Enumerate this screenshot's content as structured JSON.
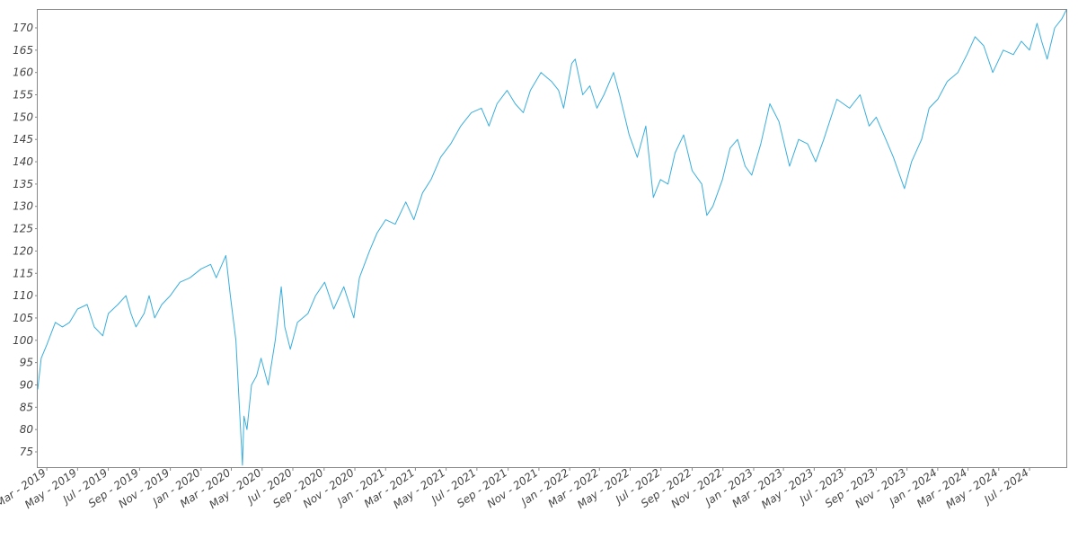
{
  "chart_data": {
    "type": "line",
    "title": "",
    "xlabel": "",
    "ylabel": "",
    "ylim": [
      72,
      174
    ],
    "x_range": [
      "2019-02-11",
      "2024-09-12"
    ],
    "grid": false,
    "legend": "none",
    "line_color": "#3aaedc",
    "y_ticks": [
      75,
      80,
      85,
      90,
      95,
      100,
      105,
      110,
      115,
      120,
      125,
      130,
      135,
      140,
      145,
      150,
      155,
      160,
      165,
      170
    ],
    "x_ticks": [
      {
        "label": "Mar - 2019",
        "date": "2019-03-01"
      },
      {
        "label": "May - 2019",
        "date": "2019-05-01"
      },
      {
        "label": "Jul - 2019",
        "date": "2019-07-01"
      },
      {
        "label": "Sep - 2019",
        "date": "2019-09-01"
      },
      {
        "label": "Nov - 2019",
        "date": "2019-11-01"
      },
      {
        "label": "Jan - 2020",
        "date": "2020-01-01"
      },
      {
        "label": "Mar - 2020",
        "date": "2020-03-01"
      },
      {
        "label": "May - 2020",
        "date": "2020-05-01"
      },
      {
        "label": "Jul - 2020",
        "date": "2020-07-01"
      },
      {
        "label": "Sep - 2020",
        "date": "2020-09-01"
      },
      {
        "label": "Nov - 2020",
        "date": "2020-11-01"
      },
      {
        "label": "Jan - 2021",
        "date": "2021-01-01"
      },
      {
        "label": "Mar - 2021",
        "date": "2021-03-01"
      },
      {
        "label": "May - 2021",
        "date": "2021-05-01"
      },
      {
        "label": "Jul - 2021",
        "date": "2021-07-01"
      },
      {
        "label": "Sep - 2021",
        "date": "2021-09-01"
      },
      {
        "label": "Nov - 2021",
        "date": "2021-11-01"
      },
      {
        "label": "Jan - 2022",
        "date": "2022-01-01"
      },
      {
        "label": "Mar - 2022",
        "date": "2022-03-01"
      },
      {
        "label": "May - 2022",
        "date": "2022-05-01"
      },
      {
        "label": "Jul - 2022",
        "date": "2022-07-01"
      },
      {
        "label": "Sep - 2022",
        "date": "2022-09-01"
      },
      {
        "label": "Nov - 2022",
        "date": "2022-11-01"
      },
      {
        "label": "Jan - 2023",
        "date": "2023-01-01"
      },
      {
        "label": "Mar - 2023",
        "date": "2023-03-01"
      },
      {
        "label": "May - 2023",
        "date": "2023-05-01"
      },
      {
        "label": "Jul - 2023",
        "date": "2023-07-01"
      },
      {
        "label": "Sep - 2023",
        "date": "2023-09-01"
      },
      {
        "label": "Nov - 2023",
        "date": "2023-11-01"
      },
      {
        "label": "Jan - 2024",
        "date": "2024-01-01"
      },
      {
        "label": "Mar - 2024",
        "date": "2024-03-01"
      },
      {
        "label": "May - 2024",
        "date": "2024-05-01"
      },
      {
        "label": "Jul - 2024",
        "date": "2024-07-01"
      }
    ],
    "series": [
      {
        "points": [
          [
            "2019-02-11",
            89
          ],
          [
            "2019-02-18",
            96
          ],
          [
            "2019-03-01",
            99
          ],
          [
            "2019-03-18",
            104
          ],
          [
            "2019-04-01",
            103
          ],
          [
            "2019-04-15",
            104
          ],
          [
            "2019-05-01",
            107
          ],
          [
            "2019-05-20",
            108
          ],
          [
            "2019-06-03",
            103
          ],
          [
            "2019-06-20",
            101
          ],
          [
            "2019-07-01",
            106
          ],
          [
            "2019-07-20",
            108
          ],
          [
            "2019-08-05",
            110
          ],
          [
            "2019-08-15",
            106
          ],
          [
            "2019-08-25",
            103
          ],
          [
            "2019-09-10",
            106
          ],
          [
            "2019-09-20",
            110
          ],
          [
            "2019-10-01",
            105
          ],
          [
            "2019-10-15",
            108
          ],
          [
            "2019-11-01",
            110
          ],
          [
            "2019-11-20",
            113
          ],
          [
            "2019-12-10",
            114
          ],
          [
            "2020-01-01",
            116
          ],
          [
            "2020-01-20",
            117
          ],
          [
            "2020-01-31",
            114
          ],
          [
            "2020-02-19",
            119
          ],
          [
            "2020-02-28",
            110
          ],
          [
            "2020-03-10",
            100
          ],
          [
            "2020-03-23",
            72
          ],
          [
            "2020-03-26",
            83
          ],
          [
            "2020-04-01",
            80
          ],
          [
            "2020-04-10",
            90
          ],
          [
            "2020-04-20",
            92
          ],
          [
            "2020-04-29",
            96
          ],
          [
            "2020-05-13",
            90
          ],
          [
            "2020-05-27",
            100
          ],
          [
            "2020-06-08",
            112
          ],
          [
            "2020-06-15",
            103
          ],
          [
            "2020-06-26",
            98
          ],
          [
            "2020-07-10",
            104
          ],
          [
            "2020-07-31",
            106
          ],
          [
            "2020-08-15",
            110
          ],
          [
            "2020-09-02",
            113
          ],
          [
            "2020-09-20",
            107
          ],
          [
            "2020-10-10",
            112
          ],
          [
            "2020-10-30",
            105
          ],
          [
            "2020-11-10",
            114
          ],
          [
            "2020-11-30",
            120
          ],
          [
            "2020-12-15",
            124
          ],
          [
            "2021-01-01",
            127
          ],
          [
            "2021-01-20",
            126
          ],
          [
            "2021-02-10",
            131
          ],
          [
            "2021-02-26",
            127
          ],
          [
            "2021-03-15",
            133
          ],
          [
            "2021-04-01",
            136
          ],
          [
            "2021-04-20",
            141
          ],
          [
            "2021-05-10",
            144
          ],
          [
            "2021-05-30",
            148
          ],
          [
            "2021-06-20",
            151
          ],
          [
            "2021-07-10",
            152
          ],
          [
            "2021-07-25",
            148
          ],
          [
            "2021-08-10",
            153
          ],
          [
            "2021-08-30",
            156
          ],
          [
            "2021-09-15",
            153
          ],
          [
            "2021-10-01",
            151
          ],
          [
            "2021-10-15",
            156
          ],
          [
            "2021-11-05",
            160
          ],
          [
            "2021-11-26",
            158
          ],
          [
            "2021-12-10",
            156
          ],
          [
            "2021-12-20",
            152
          ],
          [
            "2022-01-05",
            162
          ],
          [
            "2022-01-12",
            163
          ],
          [
            "2022-01-27",
            155
          ],
          [
            "2022-02-10",
            157
          ],
          [
            "2022-02-24",
            152
          ],
          [
            "2022-03-10",
            155
          ],
          [
            "2022-03-29",
            160
          ],
          [
            "2022-04-10",
            155
          ],
          [
            "2022-04-29",
            146
          ],
          [
            "2022-05-15",
            141
          ],
          [
            "2022-06-01",
            148
          ],
          [
            "2022-06-16",
            132
          ],
          [
            "2022-06-30",
            136
          ],
          [
            "2022-07-15",
            135
          ],
          [
            "2022-07-29",
            142
          ],
          [
            "2022-08-15",
            146
          ],
          [
            "2022-09-01",
            138
          ],
          [
            "2022-09-20",
            135
          ],
          [
            "2022-09-30",
            128
          ],
          [
            "2022-10-12",
            130
          ],
          [
            "2022-10-31",
            136
          ],
          [
            "2022-11-15",
            143
          ],
          [
            "2022-11-30",
            145
          ],
          [
            "2022-12-15",
            139
          ],
          [
            "2022-12-28",
            137
          ],
          [
            "2023-01-15",
            144
          ],
          [
            "2023-02-02",
            153
          ],
          [
            "2023-02-20",
            149
          ],
          [
            "2023-03-13",
            139
          ],
          [
            "2023-03-31",
            145
          ],
          [
            "2023-04-18",
            144
          ],
          [
            "2023-05-04",
            140
          ],
          [
            "2023-05-20",
            145
          ],
          [
            "2023-06-15",
            154
          ],
          [
            "2023-07-10",
            152
          ],
          [
            "2023-07-31",
            155
          ],
          [
            "2023-08-18",
            148
          ],
          [
            "2023-09-01",
            150
          ],
          [
            "2023-09-20",
            145
          ],
          [
            "2023-10-05",
            141
          ],
          [
            "2023-10-27",
            134
          ],
          [
            "2023-11-10",
            140
          ],
          [
            "2023-11-30",
            145
          ],
          [
            "2023-12-15",
            152
          ],
          [
            "2024-01-01",
            154
          ],
          [
            "2024-01-20",
            158
          ],
          [
            "2024-02-10",
            160
          ],
          [
            "2024-02-28",
            164
          ],
          [
            "2024-03-15",
            168
          ],
          [
            "2024-04-01",
            166
          ],
          [
            "2024-04-19",
            160
          ],
          [
            "2024-05-10",
            165
          ],
          [
            "2024-05-30",
            164
          ],
          [
            "2024-06-15",
            167
          ],
          [
            "2024-07-01",
            165
          ],
          [
            "2024-07-16",
            171
          ],
          [
            "2024-07-25",
            167
          ],
          [
            "2024-08-05",
            163
          ],
          [
            "2024-08-20",
            170
          ],
          [
            "2024-09-03",
            172
          ],
          [
            "2024-09-12",
            174
          ]
        ]
      }
    ]
  }
}
